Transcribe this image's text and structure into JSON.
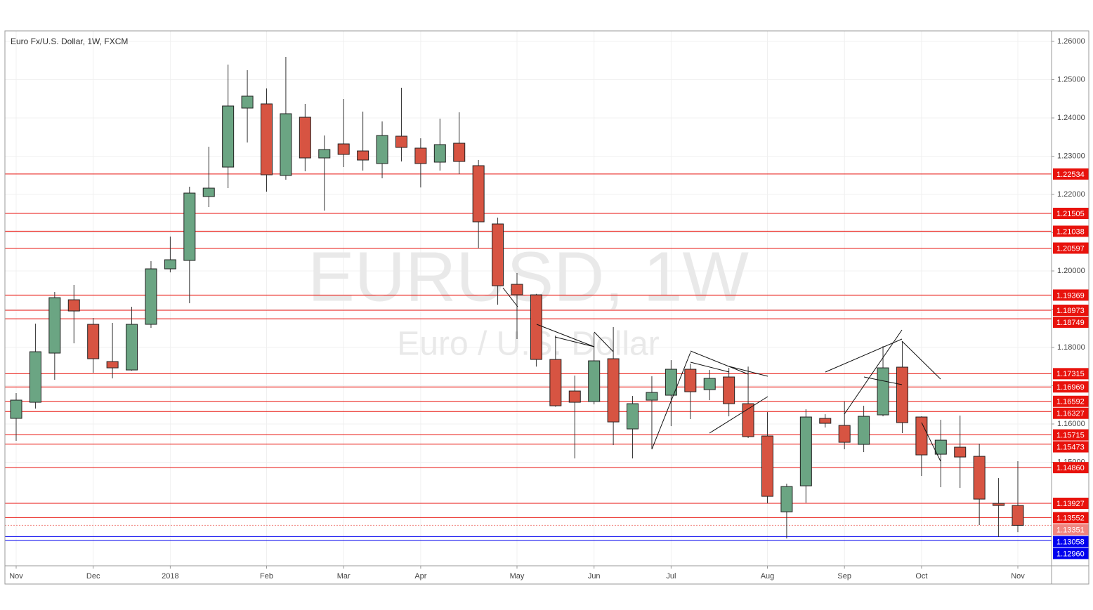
{
  "chart_data": {
    "type": "candlestick",
    "title": "Euro Fx/U.S. Dollar, 1W, FXCM",
    "watermark": "EURUSD, 1W",
    "watermark_subtitle": "Euro / U.S. Dollar",
    "categories": [
      "Nov",
      null,
      null,
      null,
      "Dec",
      null,
      null,
      null,
      "2018",
      null,
      null,
      null,
      null,
      "Feb",
      null,
      null,
      null,
      "Mar",
      null,
      null,
      null,
      "Apr",
      null,
      null,
      null,
      null,
      "May",
      null,
      null,
      null,
      "Jun",
      null,
      null,
      null,
      "Jul",
      null,
      null,
      null,
      null,
      "Aug",
      null,
      null,
      null,
      "Sep",
      null,
      null,
      null,
      "Oct",
      null,
      null,
      null,
      null,
      "Nov"
    ],
    "open": [
      1.16147,
      1.16568,
      1.17853,
      1.19247,
      1.18605,
      1.17632,
      1.17412,
      1.18605,
      1.20055,
      1.20275,
      1.21945,
      1.22715,
      1.24257,
      1.24367,
      1.22495,
      1.24018,
      1.22954,
      1.23321,
      1.23137,
      1.22807,
      1.23523,
      1.23211,
      1.22844,
      1.23339,
      1.22752,
      1.21229,
      1.19651,
      1.19376,
      1.17687,
      1.16862,
      1.16586,
      1.17706,
      1.15871,
      1.16623,
      1.16752,
      1.17431,
      1.16898,
      1.17229,
      1.16531,
      1.15687,
      1.13705,
      1.14384,
      1.16146,
      1.15963,
      1.15467,
      1.16238,
      1.17486,
      1.16183,
      1.1521,
      1.15394,
      1.15155,
      1.13926,
      1.1387
    ],
    "high": [
      1.16807,
      1.18623,
      1.19449,
      1.19633,
      1.1877,
      1.18642,
      1.19064,
      1.20256,
      1.20899,
      1.22202,
      1.23247,
      1.25394,
      1.25248,
      1.24771,
      1.25596,
      1.24367,
      1.23541,
      1.24495,
      1.24165,
      1.23908,
      1.24789,
      1.23468,
      1.23981,
      1.24147,
      1.22899,
      1.21394,
      1.19944,
      1.194,
      1.18311,
      1.17265,
      1.18385,
      1.18532,
      1.16733,
      1.17247,
      1.17669,
      1.17577,
      1.17412,
      1.17467,
      1.175,
      1.16311,
      1.1444,
      1.16385,
      1.16256,
      1.16586,
      1.16476,
      1.18036,
      1.18165,
      1.16201,
      1.16109,
      1.16219,
      1.15485,
      1.14586,
      1.15027
    ],
    "low": [
      1.1556,
      1.16403,
      1.17155,
      1.18109,
      1.17339,
      1.17192,
      1.17394,
      1.18513,
      1.19963,
      1.19155,
      1.21669,
      1.22165,
      1.23358,
      1.22073,
      1.22385,
      1.22605,
      1.21578,
      1.22715,
      1.22624,
      1.22422,
      1.22862,
      1.22183,
      1.22624,
      1.22532,
      1.20587,
      1.19119,
      1.1822,
      1.175,
      1.1645,
      1.151,
      1.16513,
      1.15449,
      1.151,
      1.15339,
      1.15944,
      1.16128,
      1.16623,
      1.16201,
      1.15632,
      1.13926,
      1.13008,
      1.13944,
      1.15908,
      1.15339,
      1.15265,
      1.16201,
      1.15761,
      1.14641,
      1.14348,
      1.14329,
      1.13357,
      1.13045,
      1.13173
    ],
    "close": [
      1.16624,
      1.17889,
      1.19302,
      1.18954,
      1.17706,
      1.17467,
      1.18605,
      1.20055,
      1.20293,
      1.22036,
      1.22165,
      1.24312,
      1.24569,
      1.22513,
      1.2411,
      1.22954,
      1.23174,
      1.23046,
      1.22899,
      1.23541,
      1.23229,
      1.22807,
      1.23303,
      1.22862,
      1.21284,
      1.19614,
      1.19376,
      1.17687,
      1.16476,
      1.16568,
      1.17651,
      1.16054,
      1.16531,
      1.16825,
      1.17431,
      1.16843,
      1.17192,
      1.16531,
      1.15669,
      1.14109,
      1.14366,
      1.16183,
      1.16018,
      1.15522,
      1.16201,
      1.17467,
      1.16036,
      1.15192,
      1.15577,
      1.15137,
      1.14036,
      1.1387,
      1.13351
    ],
    "up_color": "#6ba583",
    "down_color": "#d75442",
    "ylim": [
      1.12294,
      1.26275
    ],
    "yticks": [
      {
        "value": 1.15,
        "label": "1.15000"
      },
      {
        "value": 1.16,
        "label": "1.16000"
      },
      {
        "value": 1.17,
        "label": "1.17000"
      },
      {
        "value": 1.18,
        "label": "1.18000"
      },
      {
        "value": 1.19,
        "label": "1.19000"
      },
      {
        "value": 1.2,
        "label": "1.20000"
      },
      {
        "value": 1.21,
        "label": "1.21000"
      },
      {
        "value": 1.22,
        "label": "1.22000"
      },
      {
        "value": 1.23,
        "label": "1.23000"
      },
      {
        "value": 1.24,
        "label": "1.24000"
      },
      {
        "value": 1.25,
        "label": "1.25000"
      },
      {
        "value": 1.26,
        "label": "1.26000"
      }
    ],
    "grid": true,
    "levels": [
      {
        "value": 1.22534,
        "label": "1.22534",
        "color": "#e8120c"
      },
      {
        "value": 1.21505,
        "label": "1.21505",
        "color": "#e8120c"
      },
      {
        "value": 1.21038,
        "label": "1.21038",
        "color": "#e8120c"
      },
      {
        "value": 1.20597,
        "label": "1.20597",
        "color": "#e8120c"
      },
      {
        "value": 1.19369,
        "label": "1.19369",
        "color": "#e8120c"
      },
      {
        "value": 1.18973,
        "label": "1.18973",
        "color": "#e8120c"
      },
      {
        "value": 1.18749,
        "label": "1.18749",
        "color": "#e8120c"
      },
      {
        "value": 1.17315,
        "label": "1.17315",
        "color": "#e8120c"
      },
      {
        "value": 1.16969,
        "label": "1.16969",
        "color": "#e8120c"
      },
      {
        "value": 1.16592,
        "label": "1.16592",
        "color": "#e8120c"
      },
      {
        "value": 1.16327,
        "label": "1.16327",
        "color": "#e8120c"
      },
      {
        "value": 1.15715,
        "label": "1.15715",
        "color": "#e8120c"
      },
      {
        "value": 1.15473,
        "label": "1.15473",
        "color": "#e8120c"
      },
      {
        "value": 1.1486,
        "label": "1.14860",
        "color": "#e8120c"
      },
      {
        "value": 1.13927,
        "label": "1.13927",
        "color": "#e8120c"
      },
      {
        "value": 1.13552,
        "label": "1.13552",
        "color": "#e8120c"
      },
      {
        "value": 1.13351,
        "label": "1.13351",
        "color": "#f0857f",
        "style": "dotted"
      },
      {
        "value": 1.13058,
        "label": "1.13058",
        "color": "#0000ee"
      },
      {
        "value": 1.1296,
        "label": "1.12960",
        "color": "#0000ee"
      }
    ]
  }
}
